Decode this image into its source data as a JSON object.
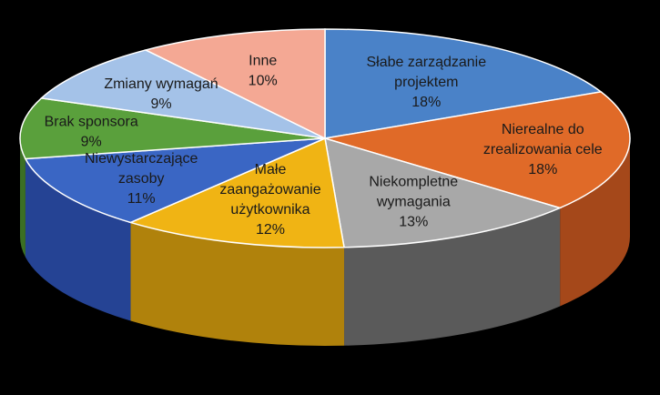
{
  "chart_data": {
    "type": "pie",
    "style": "3d",
    "title": "",
    "categories": [
      "Słabe zarządzanie projektem",
      "Nierealne do zrealizowania cele",
      "Niekompletne wymagania",
      "Małe zaangażowanie użytkownika",
      "Niewystarczające zasoby",
      "Brak sponsora",
      "Zmiany wymagań",
      "Inne"
    ],
    "values": [
      18,
      18,
      13,
      12,
      11,
      9,
      9,
      10
    ],
    "data_labels": [
      "18%",
      "18%",
      "13%",
      "12%",
      "11%",
      "9%",
      "9%",
      "10%"
    ],
    "label_lines": [
      [
        "Słabe zarządzanie",
        "projektem"
      ],
      [
        "Nierealne do",
        "zrealizowania cele"
      ],
      [
        "Niekompletne",
        "wymagania"
      ],
      [
        "Małe",
        "zaangażowanie",
        "użytkownika"
      ],
      [
        "Niewystarczające",
        "zasoby"
      ],
      [
        "Brak sponsora"
      ],
      [
        "Zmiany wymagań"
      ],
      [
        "Inne"
      ]
    ],
    "colors": [
      "#4a82c8",
      "#e06a28",
      "#a8a8a8",
      "#f0b414",
      "#3a66c4",
      "#5aa03c",
      "#a4c2e8",
      "#f4a894"
    ],
    "side_colors": [
      "#2d5a92",
      "#a5481a",
      "#5a5a5a",
      "#b0820c",
      "#254394",
      "#3b6f24",
      "#6c8cba",
      "#b97868"
    ],
    "legend": "none"
  }
}
